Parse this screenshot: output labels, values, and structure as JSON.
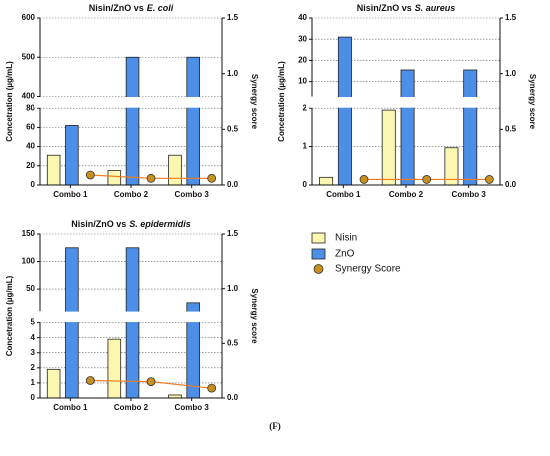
{
  "chart_data": [
    {
      "type": "bar",
      "title_prefix": "Nisin/ZnO vs",
      "title_organism": "E. coli",
      "y_label": "Concetration (µg/mL)",
      "y2_label": "Synergy score",
      "categories": [
        "Combo 1",
        "Combo 2",
        "Combo 3"
      ],
      "y_segments": [
        {
          "ylim": [
            0,
            80
          ],
          "yticks": [
            0,
            20,
            40,
            60,
            80
          ]
        },
        {
          "ylim": [
            400,
            600
          ],
          "yticks": [
            400,
            500,
            600
          ]
        }
      ],
      "y2lim": [
        0,
        1.5
      ],
      "y2ticks": [
        {
          "value": 0,
          "label": "0.0"
        },
        0.5,
        {
          "value": 1,
          "label": "1.0"
        },
        1.5
      ],
      "grid": true,
      "series": [
        {
          "name": "Nisin",
          "color": "#fbf6b0",
          "values": [
            31,
            15,
            31
          ]
        },
        {
          "name": "ZnO",
          "color": "#4d8fe6",
          "values": [
            62,
            500,
            500
          ]
        },
        {
          "name": "Synergy Score",
          "type": "line",
          "axis": "y2",
          "color": "#f07c20",
          "marker_color": "#c8901e",
          "values": [
            0.09,
            0.06,
            0.06
          ]
        }
      ]
    },
    {
      "type": "bar",
      "title_prefix": "Nisin/ZnO vs",
      "title_organism": "S. aureus",
      "y_label": "Concetration (µg/mL)",
      "y2_label": "Synergy score",
      "categories": [
        "Combo 1",
        "Combo 2",
        "Combo 3"
      ],
      "y_segments": [
        {
          "ylim": [
            0,
            2
          ],
          "yticks": [
            0,
            1,
            2
          ]
        },
        {
          "ylim": [
            3,
            40
          ],
          "yticks": [
            10,
            20,
            30,
            40
          ]
        }
      ],
      "y2lim": [
        0,
        1.5
      ],
      "y2ticks": [
        {
          "value": 0,
          "label": "0.0"
        },
        0.5,
        {
          "value": 1,
          "label": "1.0"
        },
        1.5
      ],
      "grid": true,
      "series": [
        {
          "name": "Nisin",
          "color": "#fbf6b0",
          "values": [
            0.2,
            1.95,
            0.97
          ]
        },
        {
          "name": "ZnO",
          "color": "#4d8fe6",
          "values": [
            31,
            15.5,
            15.5
          ]
        },
        {
          "name": "Synergy Score",
          "type": "line",
          "axis": "y2",
          "color": "#f07c20",
          "marker_color": "#c8901e",
          "values": [
            0.05,
            0.05,
            0.05
          ]
        }
      ]
    },
    {
      "type": "bar",
      "title_prefix": "Nisin/ZnO vs",
      "title_organism": "S. epidermidis",
      "y_label": "Concetration (µg/mL)",
      "y2_label": "Synergy score",
      "categories": [
        "Combo 1",
        "Combo 2",
        "Combo 3"
      ],
      "y_segments": [
        {
          "ylim": [
            0,
            5
          ],
          "yticks": [
            0,
            1,
            2,
            3,
            4,
            5
          ]
        },
        {
          "ylim": [
            10,
            150
          ],
          "yticks": [
            50,
            100,
            150
          ]
        }
      ],
      "y2lim": [
        0,
        1.5
      ],
      "y2ticks": [
        {
          "value": 0,
          "label": "0.0"
        },
        0.5,
        {
          "value": 1,
          "label": "1.0"
        },
        1.5
      ],
      "grid": true,
      "series": [
        {
          "name": "Nisin",
          "color": "#fbf6b0",
          "values": [
            1.9,
            3.9,
            0.2
          ]
        },
        {
          "name": "ZnO",
          "color": "#4d8fe6",
          "values": [
            125,
            125,
            25
          ]
        },
        {
          "name": "Synergy Score",
          "type": "line",
          "axis": "y2",
          "color": "#f07c20",
          "marker_color": "#c8901e",
          "values": [
            0.16,
            0.15,
            0.09
          ]
        }
      ]
    }
  ],
  "figure_label": "(F)"
}
